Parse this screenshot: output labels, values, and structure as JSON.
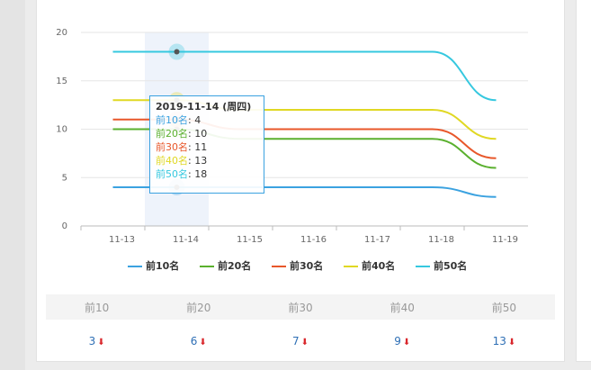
{
  "chart_data": {
    "type": "line",
    "categories": [
      "11-13",
      "11-14",
      "11-15",
      "11-16",
      "11-17",
      "11-18",
      "11-19"
    ],
    "series": [
      {
        "name": "前10名",
        "color": "#3ba2e0",
        "values": [
          4,
          4,
          4,
          4,
          4,
          4,
          3
        ]
      },
      {
        "name": "前20名",
        "color": "#5ab02e",
        "values": [
          10,
          10,
          9,
          9,
          9,
          9,
          6
        ]
      },
      {
        "name": "前30名",
        "color": "#e8572a",
        "values": [
          11,
          11,
          10,
          10,
          10,
          10,
          7
        ]
      },
      {
        "name": "前40名",
        "color": "#e0d823",
        "values": [
          13,
          13,
          12,
          12,
          12,
          12,
          9
        ]
      },
      {
        "name": "前50名",
        "color": "#36c8df",
        "values": [
          18,
          18,
          18,
          18,
          18,
          18,
          13
        ]
      }
    ],
    "ylim": [
      0,
      20
    ],
    "yticks": [
      0,
      5,
      10,
      15,
      20
    ],
    "grid": true,
    "legend": "bottom",
    "tooltip_title": "2019-11-14 (周四)"
  },
  "table": {
    "headers": [
      "前10",
      "前20",
      "前30",
      "前40",
      "前50"
    ],
    "values": [
      3,
      6,
      7,
      9,
      13
    ]
  }
}
